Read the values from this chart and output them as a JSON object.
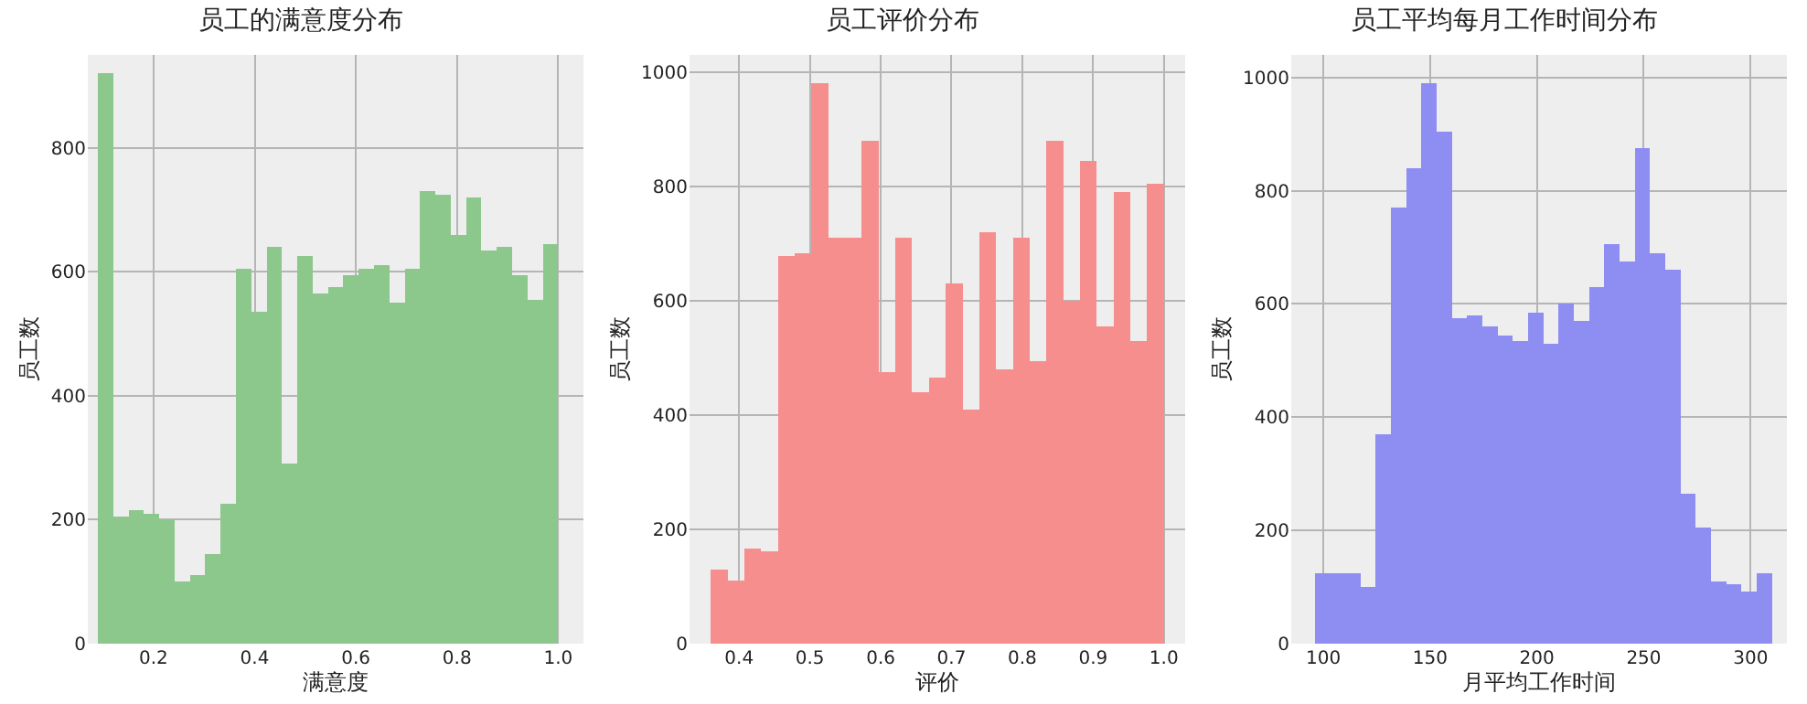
{
  "chart_data": [
    {
      "type": "histogram",
      "title": "员工的满意度分布",
      "xlabel": "满意度",
      "ylabel": "员工数",
      "color": "#8cc78c",
      "grid": true,
      "bins": [
        0.09,
        0.12,
        0.151,
        0.181,
        0.211,
        0.242,
        0.272,
        0.302,
        0.333,
        0.363,
        0.393,
        0.424,
        0.454,
        0.484,
        0.515,
        0.545,
        0.575,
        0.606,
        0.636,
        0.666,
        0.697,
        0.727,
        0.757,
        0.788,
        0.818,
        0.848,
        0.879,
        0.909,
        0.939,
        0.97,
        1.0
      ],
      "values": [
        920,
        205,
        215,
        210,
        200,
        100,
        110,
        145,
        225,
        605,
        535,
        640,
        290,
        625,
        565,
        575,
        595,
        605,
        610,
        550,
        605,
        730,
        725,
        660,
        720,
        635,
        640,
        595,
        555,
        645
      ],
      "xlim": [
        0.07,
        1.05
      ],
      "xticks": [
        0.2,
        0.4,
        0.6,
        0.8,
        {
          "value": 1,
          "label": "1.0"
        }
      ],
      "ylim": [
        0,
        950
      ],
      "yticks": [
        0,
        200,
        400,
        600,
        800
      ]
    },
    {
      "type": "histogram",
      "title": "员工评价分布",
      "xlabel": "评价",
      "ylabel": "员工数",
      "color": "#f68e8e",
      "grid": true,
      "bins": [
        0.36,
        0.384,
        0.407,
        0.431,
        0.455,
        0.479,
        0.502,
        0.526,
        0.55,
        0.573,
        0.597,
        0.621,
        0.644,
        0.668,
        0.692,
        0.716,
        0.739,
        0.763,
        0.787,
        0.81,
        0.834,
        0.858,
        0.881,
        0.905,
        0.929,
        0.953,
        0.976,
        1.0
      ],
      "values": [
        129,
        110,
        166,
        161,
        678,
        683,
        981,
        710,
        710,
        880,
        475,
        710,
        440,
        465,
        630,
        410,
        720,
        480,
        710,
        495,
        880,
        600,
        845,
        555,
        790,
        530,
        805
      ],
      "xlim": [
        0.33,
        1.03
      ],
      "xticks": [
        0.4,
        0.5,
        0.6,
        0.7,
        0.8,
        0.9,
        {
          "value": 1,
          "label": "1.0"
        }
      ],
      "ylim": [
        0,
        1030
      ],
      "yticks": [
        0,
        200,
        400,
        600,
        800,
        1000
      ]
    },
    {
      "type": "histogram",
      "title": "员工平均每月工作时间分布",
      "xlabel": "月平均工作时间",
      "ylabel": "员工数",
      "color": "#8e8ef2",
      "grid": true,
      "bins": [
        96,
        103.1,
        110.3,
        117.4,
        124.5,
        131.7,
        138.8,
        145.9,
        153.1,
        160.2,
        167.3,
        174.5,
        181.6,
        188.7,
        195.9,
        203,
        210.1,
        217.3,
        224.4,
        231.5,
        238.7,
        245.8,
        252.9,
        260.1,
        267.2,
        274.3,
        281.5,
        288.6,
        295.7,
        302.9,
        310
      ],
      "values": [
        125,
        125,
        125,
        100,
        370,
        770,
        840,
        990,
        905,
        575,
        580,
        560,
        545,
        535,
        585,
        530,
        600,
        570,
        630,
        705,
        675,
        875,
        690,
        660,
        265,
        205,
        110,
        105,
        92,
        125
      ],
      "xlim": [
        85,
        317
      ],
      "xticks": [
        100,
        150,
        200,
        250,
        300
      ],
      "ylim": [
        0,
        1040
      ],
      "yticks": [
        0,
        200,
        400,
        600,
        800,
        1000
      ]
    }
  ]
}
